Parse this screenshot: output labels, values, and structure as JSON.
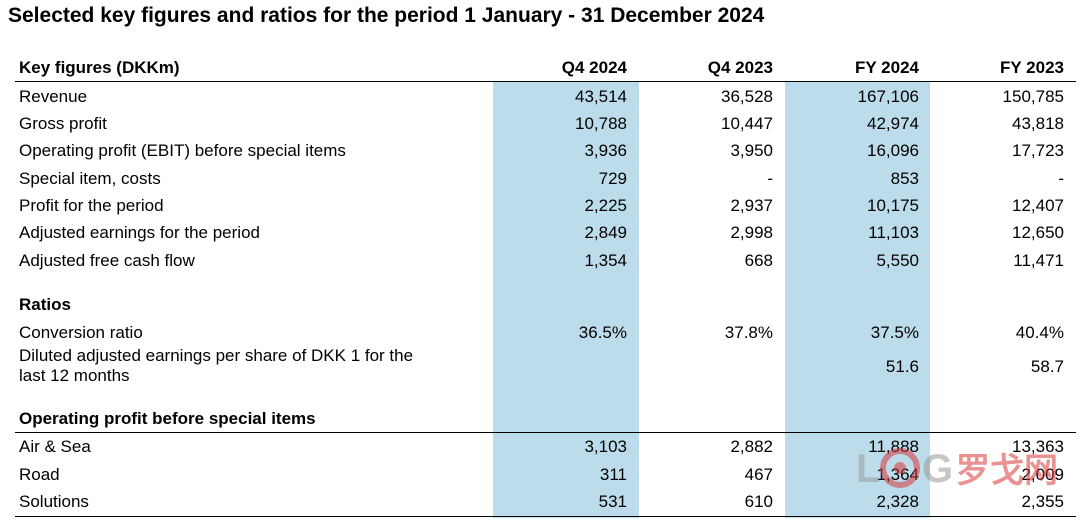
{
  "title": "Selected key figures and ratios for the period 1 January - 31 December 2024",
  "header": {
    "label": "Key figures (DKKm)",
    "cols": [
      "Q4 2024",
      "Q4 2023",
      "FY 2024",
      "FY 2023"
    ]
  },
  "key_figures": [
    {
      "label": "Revenue",
      "values": [
        "43,514",
        "36,528",
        "167,106",
        "150,785"
      ]
    },
    {
      "label": "Gross profit",
      "values": [
        "10,788",
        "10,447",
        "42,974",
        "43,818"
      ]
    },
    {
      "label": "Operating profit (EBIT) before special items",
      "values": [
        "3,936",
        "3,950",
        "16,096",
        "17,723"
      ]
    },
    {
      "label": "Special item, costs",
      "values": [
        "729",
        "-",
        "853",
        "-"
      ]
    },
    {
      "label": "Profit for the period",
      "values": [
        "2,225",
        "2,937",
        "10,175",
        "12,407"
      ]
    },
    {
      "label": "Adjusted earnings for the period",
      "values": [
        "2,849",
        "2,998",
        "11,103",
        "12,650"
      ]
    },
    {
      "label": "Adjusted free cash flow",
      "values": [
        "1,354",
        "668",
        "5,550",
        "11,471"
      ]
    }
  ],
  "ratios": {
    "heading": "Ratios",
    "rows": [
      {
        "label": "Conversion ratio",
        "values": [
          "36.5%",
          "37.8%",
          "37.5%",
          "40.4%"
        ]
      },
      {
        "label": "Diluted adjusted earnings per share of DKK 1 for the last 12 months",
        "values": [
          "",
          "",
          "51.6",
          "58.7"
        ]
      }
    ]
  },
  "operating": {
    "heading": "Operating profit before special items",
    "rows": [
      {
        "label": "Air & Sea",
        "values": [
          "3,103",
          "2,882",
          "11,888",
          "13,363"
        ]
      },
      {
        "label": "Road",
        "values": [
          "311",
          "467",
          "1,364",
          "2,009"
        ]
      },
      {
        "label": "Solutions",
        "values": [
          "531",
          "610",
          "2,328",
          "2,355"
        ]
      }
    ]
  },
  "watermark": {
    "text": "LOG罗戈网",
    "colors": {
      "red": "#d9383a",
      "gray": "#9a9a9a"
    }
  },
  "colors": {
    "highlight": "#bcdceb"
  }
}
